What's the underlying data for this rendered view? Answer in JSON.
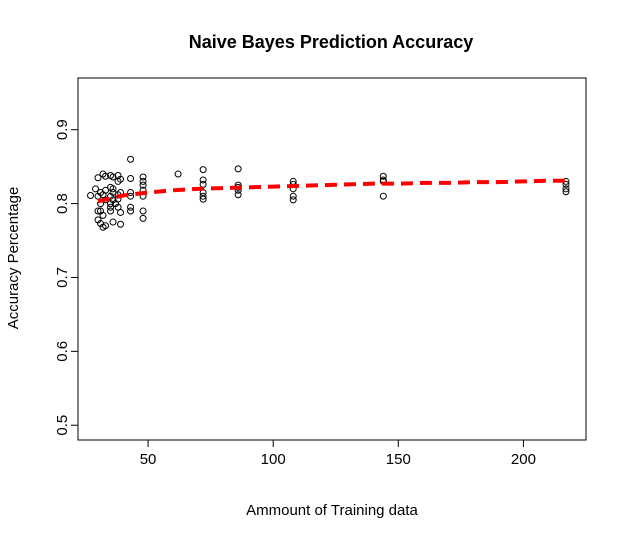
{
  "chart_data": {
    "type": "scatter",
    "title": "Naive Bayes Prediction Accuracy",
    "xlabel": "Ammount of Training data",
    "ylabel": "Accuracy Percentage",
    "xlim": [
      22,
      225
    ],
    "ylim": [
      0.48,
      0.97
    ],
    "x_ticks": [
      50,
      100,
      150,
      200
    ],
    "y_ticks": [
      0.5,
      0.6,
      0.7,
      0.8,
      0.9
    ],
    "x_tick_labels": [
      "50",
      "100",
      "150",
      "200"
    ],
    "y_tick_labels": [
      "0.5",
      "0.6",
      "0.7",
      "0.8",
      "0.9"
    ],
    "grid": false,
    "series": [
      {
        "marker": "open-circle",
        "color": "#000000",
        "x": [
          27,
          29,
          30,
          30,
          30,
          30,
          31,
          31,
          31,
          31,
          32,
          32,
          32,
          32,
          33,
          33,
          33,
          33,
          35,
          35,
          35,
          35,
          35,
          35,
          36,
          36,
          36,
          36,
          36,
          37,
          38,
          38,
          38,
          38,
          38,
          39,
          39,
          39,
          39,
          43,
          43,
          43,
          43,
          43,
          43,
          48,
          48,
          48,
          48,
          48,
          48,
          48,
          62,
          72,
          72,
          72,
          72,
          72,
          72,
          86,
          86,
          86,
          86,
          86,
          108,
          108,
          108,
          108,
          108,
          144,
          144,
          144,
          144,
          217,
          217,
          217,
          217
        ],
        "y": [
          0.811,
          0.82,
          0.835,
          0.81,
          0.79,
          0.778,
          0.773,
          0.79,
          0.8,
          0.815,
          0.768,
          0.812,
          0.84,
          0.784,
          0.77,
          0.805,
          0.818,
          0.837,
          0.838,
          0.822,
          0.81,
          0.8,
          0.795,
          0.79,
          0.836,
          0.805,
          0.775,
          0.815,
          0.82,
          0.8,
          0.838,
          0.795,
          0.806,
          0.812,
          0.83,
          0.788,
          0.815,
          0.833,
          0.772,
          0.86,
          0.834,
          0.815,
          0.795,
          0.79,
          0.81,
          0.836,
          0.825,
          0.818,
          0.81,
          0.78,
          0.79,
          0.83,
          0.84,
          0.846,
          0.832,
          0.826,
          0.815,
          0.806,
          0.81,
          0.847,
          0.825,
          0.818,
          0.812,
          0.822,
          0.83,
          0.826,
          0.82,
          0.81,
          0.805,
          0.837,
          0.832,
          0.83,
          0.81,
          0.83,
          0.826,
          0.82,
          0.816
        ]
      },
      {
        "marker": "line",
        "style": "dashed",
        "color": "#ff0000",
        "x": [
          30,
          40,
          50,
          60,
          70,
          80,
          90,
          100,
          110,
          120,
          130,
          140,
          150,
          160,
          170,
          180,
          190,
          200,
          210,
          217
        ],
        "y": [
          0.803,
          0.811,
          0.815,
          0.818,
          0.82,
          0.821,
          0.822,
          0.823,
          0.824,
          0.825,
          0.826,
          0.827,
          0.827,
          0.828,
          0.828,
          0.829,
          0.829,
          0.83,
          0.831,
          0.831
        ]
      }
    ]
  }
}
